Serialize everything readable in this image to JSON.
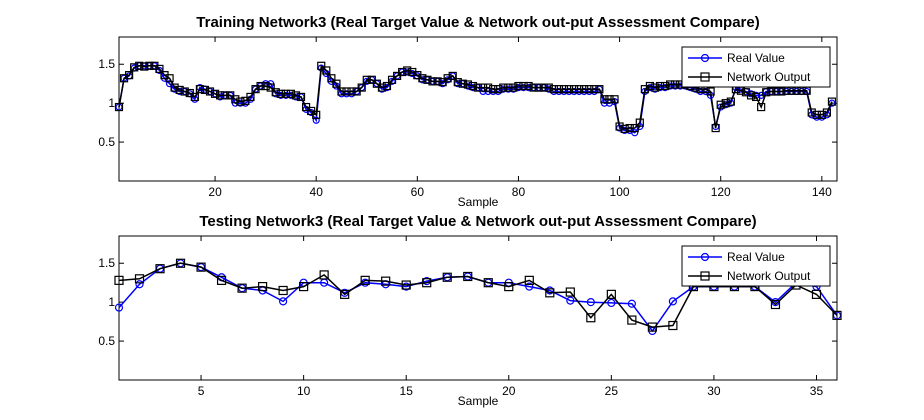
{
  "chart_data": [
    {
      "type": "line",
      "title": "Training Network3 (Real Target Value & Network out-put Assessment Compare)",
      "xlabel": "Sample",
      "ylabel": "",
      "xlim": [
        1,
        143
      ],
      "ylim": [
        0,
        1.85
      ],
      "xticks": [
        20,
        40,
        60,
        80,
        100,
        120,
        140
      ],
      "yticks": [
        0.5,
        1,
        1.5
      ],
      "legend_position": "top-right",
      "series": [
        {
          "name": "Real Value",
          "color": "#0000ff",
          "marker": "circle",
          "values": [
            0.95,
            1.32,
            1.35,
            1.45,
            1.48,
            1.48,
            1.48,
            1.48,
            1.42,
            1.32,
            1.25,
            1.18,
            1.15,
            1.15,
            1.12,
            1.05,
            1.2,
            1.18,
            1.15,
            1.12,
            1.08,
            1.1,
            1.1,
            1.0,
            1.0,
            1.0,
            1.05,
            1.18,
            1.22,
            1.25,
            1.25,
            1.12,
            1.1,
            1.1,
            1.1,
            1.08,
            1.08,
            0.92,
            0.88,
            0.78,
            1.45,
            1.38,
            1.28,
            1.22,
            1.12,
            1.12,
            1.12,
            1.15,
            1.2,
            1.28,
            1.3,
            1.25,
            1.18,
            1.2,
            1.28,
            1.35,
            1.4,
            1.4,
            1.38,
            1.35,
            1.3,
            1.3,
            1.28,
            1.28,
            1.25,
            1.3,
            1.35,
            1.25,
            1.25,
            1.22,
            1.2,
            1.2,
            1.15,
            1.15,
            1.15,
            1.15,
            1.18,
            1.18,
            1.18,
            1.2,
            1.2,
            1.2,
            1.2,
            1.2,
            1.2,
            1.18,
            1.15,
            1.15,
            1.15,
            1.15,
            1.15,
            1.15,
            1.15,
            1.15,
            1.15,
            1.18,
            1.0,
            1.0,
            1.02,
            0.68,
            0.65,
            0.65,
            0.62,
            0.7,
            1.15,
            1.2,
            1.18,
            1.2,
            1.2,
            1.22,
            1.22,
            1.22,
            1.22,
            1.2,
            1.18,
            1.15,
            1.15,
            1.1,
            0.7,
            0.95,
            0.98,
            1.0,
            1.2,
            1.18,
            1.15,
            1.12,
            1.1,
            1.1,
            1.15,
            1.15,
            1.15,
            1.15,
            1.15,
            1.15,
            1.15,
            1.15,
            1.15,
            0.85,
            0.82,
            0.82,
            0.85,
            1.0
          ],
          "values_count": 143
        },
        {
          "name": "Network Output",
          "color": "#000000",
          "marker": "square",
          "values": [
            0.95,
            1.32,
            1.36,
            1.46,
            1.48,
            1.47,
            1.48,
            1.48,
            1.44,
            1.36,
            1.32,
            1.2,
            1.17,
            1.15,
            1.13,
            1.08,
            1.18,
            1.17,
            1.15,
            1.12,
            1.1,
            1.1,
            1.1,
            1.05,
            1.02,
            1.03,
            1.08,
            1.18,
            1.22,
            1.22,
            1.2,
            1.14,
            1.12,
            1.12,
            1.12,
            1.1,
            1.08,
            0.95,
            0.9,
            0.85,
            1.48,
            1.42,
            1.32,
            1.25,
            1.15,
            1.15,
            1.15,
            1.15,
            1.2,
            1.3,
            1.3,
            1.25,
            1.2,
            1.22,
            1.3,
            1.35,
            1.4,
            1.42,
            1.4,
            1.36,
            1.32,
            1.3,
            1.28,
            1.28,
            1.27,
            1.32,
            1.35,
            1.27,
            1.25,
            1.24,
            1.22,
            1.2,
            1.2,
            1.2,
            1.18,
            1.18,
            1.2,
            1.2,
            1.2,
            1.22,
            1.22,
            1.22,
            1.2,
            1.2,
            1.2,
            1.2,
            1.18,
            1.18,
            1.18,
            1.18,
            1.18,
            1.18,
            1.18,
            1.18,
            1.18,
            1.18,
            1.05,
            1.05,
            1.05,
            0.7,
            0.67,
            0.68,
            0.68,
            0.75,
            1.18,
            1.22,
            1.2,
            1.22,
            1.22,
            1.24,
            1.24,
            1.24,
            1.24,
            1.22,
            1.2,
            1.18,
            1.18,
            1.15,
            0.68,
            0.98,
            1.0,
            1.02,
            1.18,
            1.16,
            1.14,
            1.1,
            1.08,
            0.95,
            1.14,
            1.15,
            1.15,
            1.15,
            1.16,
            1.16,
            1.16,
            1.16,
            1.16,
            0.88,
            0.85,
            0.85,
            0.88,
            1.02
          ],
          "values_count": 143
        }
      ]
    },
    {
      "type": "line",
      "title": "Testing Network3 (Real Target Value & Network out-put Assessment Compare)",
      "xlabel": "Sample",
      "ylabel": "",
      "xlim": [
        1,
        36
      ],
      "ylim": [
        0,
        1.85
      ],
      "xticks": [
        5,
        10,
        15,
        20,
        25,
        30,
        35
      ],
      "yticks": [
        0.5,
        1,
        1.5
      ],
      "legend_position": "top-right",
      "series": [
        {
          "name": "Real Value",
          "color": "#0000ff",
          "marker": "circle",
          "values": [
            0.93,
            1.23,
            1.43,
            1.5,
            1.45,
            1.32,
            1.18,
            1.15,
            1.01,
            1.25,
            1.25,
            1.12,
            1.25,
            1.23,
            1.2,
            1.27,
            1.32,
            1.33,
            1.25,
            1.25,
            1.2,
            1.15,
            1.02,
            1.0,
            0.99,
            0.98,
            0.63,
            1.01,
            1.2,
            1.2,
            1.2,
            1.2,
            1.0,
            1.25,
            1.2,
            0.83
          ]
        },
        {
          "name": "Network Output",
          "color": "#000000",
          "marker": "square",
          "values": [
            1.28,
            1.3,
            1.43,
            1.5,
            1.45,
            1.28,
            1.18,
            1.2,
            1.15,
            1.2,
            1.35,
            1.1,
            1.28,
            1.27,
            1.22,
            1.25,
            1.32,
            1.33,
            1.25,
            1.2,
            1.28,
            1.12,
            1.13,
            0.8,
            1.1,
            0.77,
            0.68,
            0.7,
            1.2,
            1.2,
            1.2,
            1.2,
            0.97,
            1.22,
            1.1,
            0.83
          ]
        }
      ]
    }
  ]
}
